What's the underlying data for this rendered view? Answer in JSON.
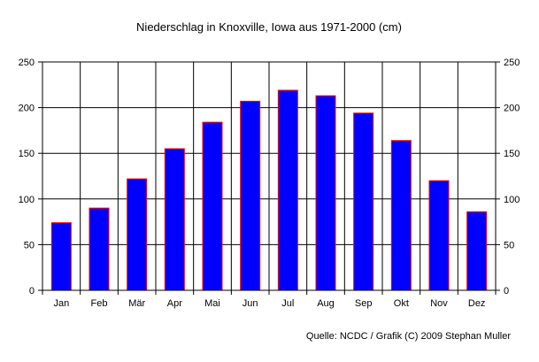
{
  "chart_data": {
    "type": "bar",
    "title": "Niederschlag in Knoxville, Iowa aus 1971-2000 (cm)",
    "categories": [
      "Jan",
      "Feb",
      "Mär",
      "Apr",
      "Mai",
      "Jun",
      "Jul",
      "Aug",
      "Sep",
      "Okt",
      "Nov",
      "Dez"
    ],
    "values": [
      74,
      90,
      122,
      155,
      184,
      207,
      219,
      213,
      194,
      164,
      120,
      86
    ],
    "y_ticks": [
      "0",
      "50",
      "100",
      "150",
      "200",
      "250"
    ],
    "ylim": [
      0,
      250
    ],
    "grid": true,
    "y_axis_both_sides": true,
    "source": "Quelle: NCDC / Grafik (C) 2009 Stephan Muller",
    "colors": {
      "bar_fill": "#0000ff",
      "bar_stroke": "#ff0000",
      "grid": "#000000",
      "background": "#ffffff"
    }
  }
}
